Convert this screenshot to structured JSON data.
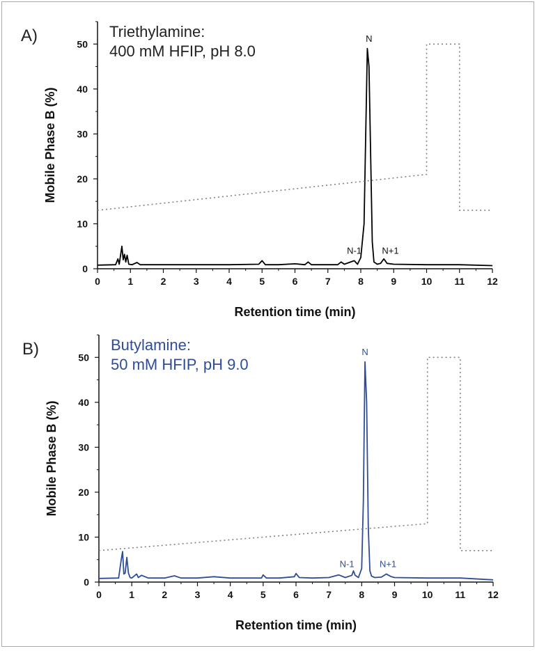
{
  "chart_data": [
    {
      "type": "line",
      "panel": "A)",
      "title_line1": "Triethylamine:",
      "title_line2": "400 mM HFIP, pH 8.0",
      "xlabel": "Retention time (min)",
      "ylabel": "Mobile Phase B (%)",
      "xlim": [
        0,
        12
      ],
      "ylim": [
        0,
        55
      ],
      "x_ticks": [
        0,
        1,
        2,
        3,
        4,
        5,
        6,
        7,
        8,
        9,
        10,
        11,
        12
      ],
      "y_ticks": [
        0,
        10,
        20,
        30,
        40,
        50
      ],
      "trace_color": "#000000",
      "gradient_color": "#808080",
      "peak_labels": [
        {
          "text": "N",
          "x": 8.25,
          "y": 50.5
        },
        {
          "text": "N-1",
          "x": 7.8,
          "y": 3.3
        },
        {
          "text": "N+1",
          "x": 8.9,
          "y": 3.3
        }
      ],
      "series": [
        {
          "style": "solid",
          "x": [
            0,
            0.55,
            0.62,
            0.66,
            0.7,
            0.74,
            0.78,
            0.82,
            0.86,
            0.9,
            0.95,
            1.05,
            1.2,
            1.3,
            1.5,
            2.0,
            3.0,
            4.0,
            4.9,
            5.0,
            5.1,
            5.5,
            6.0,
            6.3,
            6.4,
            6.5,
            7.0,
            7.3,
            7.4,
            7.5,
            7.8,
            7.9,
            8.0,
            8.1,
            8.15,
            8.2,
            8.25,
            8.3,
            8.35,
            8.4,
            8.5,
            8.6,
            8.7,
            8.8,
            9.0,
            10.0,
            11.0,
            12.0
          ],
          "y": [
            0.8,
            0.9,
            2.2,
            1.0,
            3.0,
            5.0,
            2.0,
            3.2,
            1.5,
            3.0,
            1.0,
            0.9,
            1.4,
            0.9,
            0.9,
            0.9,
            0.9,
            0.9,
            1.0,
            1.8,
            0.9,
            0.9,
            1.1,
            0.9,
            1.5,
            0.9,
            0.9,
            0.9,
            1.5,
            1.0,
            1.8,
            1.0,
            2.5,
            10.0,
            30.0,
            49.0,
            45.0,
            25.0,
            6.0,
            1.5,
            1.0,
            1.2,
            2.2,
            1.2,
            1.0,
            0.9,
            0.9,
            0.7
          ]
        },
        {
          "style": "dotted",
          "x": [
            0,
            10,
            10,
            11,
            11,
            12
          ],
          "y": [
            13,
            21,
            50,
            50,
            13,
            13
          ]
        }
      ]
    },
    {
      "type": "line",
      "panel": "B)",
      "title_line1": "Butylamine:",
      "title_line2": "50 mM HFIP, pH 9.0",
      "xlabel": "Retention time (min)",
      "ylabel": "Mobile Phase B (%)",
      "xlim": [
        0,
        12
      ],
      "ylim": [
        0,
        55
      ],
      "x_ticks": [
        0,
        1,
        2,
        3,
        4,
        5,
        6,
        7,
        8,
        9,
        10,
        11,
        12
      ],
      "y_ticks": [
        0,
        10,
        20,
        30,
        40,
        50
      ],
      "trace_color": "#2f4d96",
      "gradient_color": "#808080",
      "peak_labels": [
        {
          "text": "N",
          "x": 8.1,
          "y": 50.5
        },
        {
          "text": "N-1",
          "x": 7.55,
          "y": 3.3
        },
        {
          "text": "N+1",
          "x": 8.8,
          "y": 3.3
        }
      ],
      "series": [
        {
          "style": "solid",
          "x": [
            0,
            0.6,
            0.68,
            0.72,
            0.76,
            0.8,
            0.85,
            0.9,
            0.95,
            1.0,
            1.15,
            1.2,
            1.3,
            1.5,
            2.0,
            2.3,
            2.5,
            3.0,
            3.5,
            4.0,
            4.95,
            5.0,
            5.1,
            5.5,
            5.95,
            6.0,
            6.1,
            6.5,
            7.0,
            7.3,
            7.5,
            7.7,
            7.75,
            7.8,
            7.9,
            8.0,
            8.05,
            8.1,
            8.15,
            8.2,
            8.25,
            8.3,
            8.4,
            8.6,
            8.75,
            8.9,
            9.0,
            10.0,
            11.0,
            12.0
          ],
          "y": [
            0.8,
            0.9,
            5.0,
            6.8,
            1.8,
            2.0,
            5.5,
            2.0,
            1.0,
            0.9,
            1.8,
            1.0,
            1.5,
            0.9,
            0.9,
            1.4,
            0.9,
            0.9,
            1.2,
            0.9,
            0.9,
            1.6,
            0.9,
            0.9,
            1.2,
            1.9,
            1.0,
            0.9,
            1.0,
            1.6,
            1.0,
            1.5,
            2.5,
            1.5,
            1.0,
            3.0,
            18.0,
            49.0,
            40.0,
            12.0,
            2.5,
            1.3,
            1.0,
            1.1,
            1.8,
            1.2,
            1.0,
            0.9,
            0.9,
            0.5
          ]
        },
        {
          "style": "dotted",
          "x": [
            0,
            10,
            10,
            11,
            11,
            12
          ],
          "y": [
            7,
            13,
            50,
            50,
            7,
            7
          ]
        }
      ]
    }
  ]
}
